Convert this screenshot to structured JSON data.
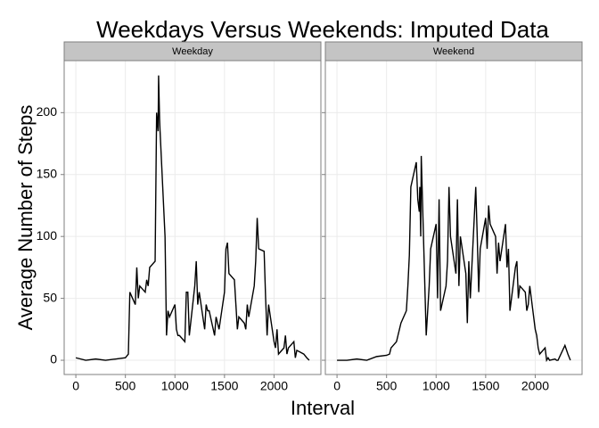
{
  "chart_data": {
    "type": "line",
    "title": "Weekdays Versus Weekends: Imputed Data",
    "xlabel": "Interval",
    "ylabel": "Average Number of Steps",
    "color": "#000000",
    "grid": true,
    "xlim": [
      -117.75,
      2472.75
    ],
    "ylim": [
      -11.5,
      242
    ],
    "xticks": [
      0,
      500,
      1000,
      1500,
      2000
    ],
    "yticks": [
      0,
      50,
      100,
      150,
      200
    ],
    "x": [
      0,
      100,
      200,
      300,
      400,
      500,
      530,
      545,
      600,
      615,
      630,
      645,
      700,
      715,
      730,
      745,
      800,
      815,
      830,
      835,
      845,
      850,
      900,
      915,
      930,
      945,
      1000,
      1015,
      1030,
      1045,
      1100,
      1115,
      1130,
      1145,
      1200,
      1215,
      1230,
      1245,
      1300,
      1315,
      1330,
      1345,
      1400,
      1415,
      1430,
      1445,
      1500,
      1515,
      1530,
      1545,
      1600,
      1615,
      1630,
      1645,
      1700,
      1715,
      1730,
      1745,
      1800,
      1815,
      1830,
      1845,
      1900,
      1915,
      1930,
      1945,
      2000,
      2015,
      2030,
      2045,
      2100,
      2115,
      2130,
      2145,
      2200,
      2215,
      2230,
      2300,
      2330,
      2355
    ],
    "facets": [
      {
        "name": "Weekday",
        "values": [
          2,
          0,
          1,
          0,
          1,
          2,
          5,
          55,
          45,
          75,
          50,
          60,
          55,
          65,
          60,
          75,
          80,
          200,
          185,
          230,
          195,
          185,
          100,
          20,
          40,
          35,
          45,
          25,
          20,
          20,
          15,
          55,
          55,
          20,
          60,
          80,
          45,
          55,
          25,
          45,
          40,
          40,
          20,
          35,
          30,
          25,
          55,
          90,
          95,
          70,
          65,
          45,
          25,
          35,
          30,
          25,
          45,
          35,
          60,
          80,
          115,
          90,
          88,
          50,
          20,
          45,
          15,
          10,
          25,
          5,
          10,
          20,
          5,
          10,
          15,
          2,
          8,
          5,
          2,
          0
        ]
      },
      {
        "name": "Weekend",
        "values": [
          0,
          0,
          1,
          0,
          3,
          4,
          5,
          10,
          15,
          20,
          25,
          30,
          40,
          60,
          85,
          140,
          160,
          130,
          120,
          140,
          100,
          165,
          20,
          40,
          60,
          90,
          110,
          50,
          130,
          40,
          60,
          80,
          140,
          100,
          70,
          130,
          60,
          100,
          70,
          30,
          80,
          50,
          140,
          100,
          55,
          90,
          115,
          90,
          125,
          110,
          100,
          70,
          95,
          80,
          110,
          75,
          90,
          40,
          75,
          80,
          50,
          60,
          55,
          40,
          45,
          60,
          25,
          20,
          10,
          5,
          10,
          0,
          2,
          0,
          1,
          0,
          0,
          12,
          5,
          0
        ]
      }
    ]
  }
}
